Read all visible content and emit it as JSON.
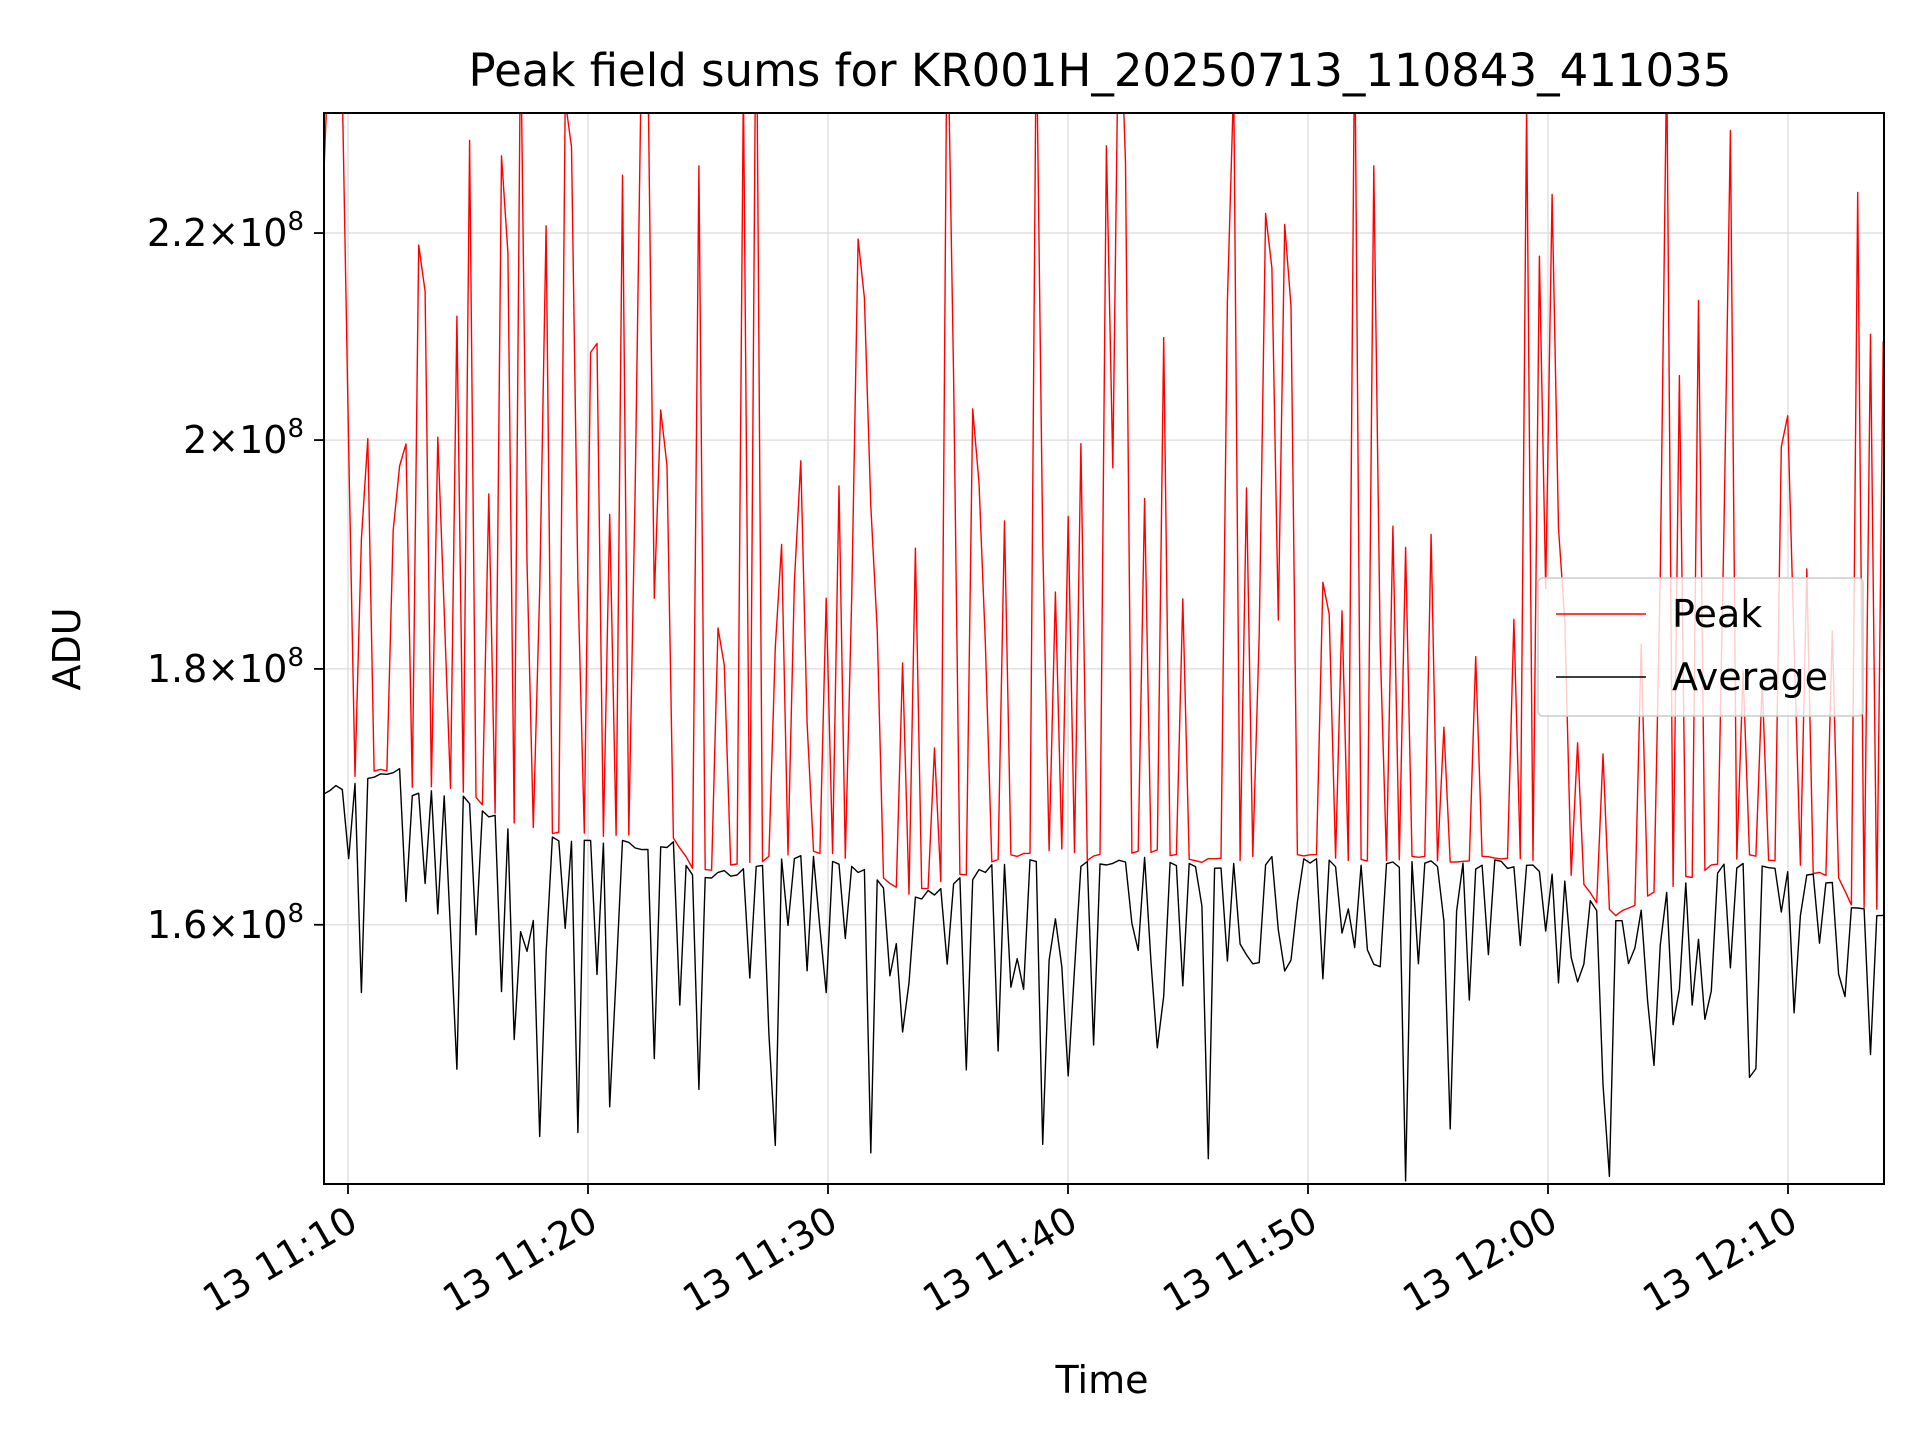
{
  "chart_data": {
    "type": "line",
    "title": "Peak field sums for KR001H_20250713_110843_411035",
    "xlabel": "Time",
    "ylabel": "ADU",
    "x_start": "2025-07-13 11:08:58",
    "x_end": "2025-07-13 12:13:58",
    "xlim": [
      "2025-07-13 11:09:00",
      "2025-07-13 12:14:00"
    ],
    "ylim": [
      142000000,
      232500000
    ],
    "yscale": "log",
    "grid": true,
    "legend_position": "center-right",
    "x_ticks": [
      {
        "label": "13 11:10"
      },
      {
        "label": "13 11:20"
      },
      {
        "label": "13 11:30"
      },
      {
        "label": "13 11:40"
      },
      {
        "label": "13 11:50"
      },
      {
        "label": "13 12:00"
      },
      {
        "label": "13 12:10"
      }
    ],
    "y_ticks": [
      {
        "value": 160000000,
        "mantissa": "1.6",
        "exp": "8"
      },
      {
        "value": 180000000,
        "mantissa": "1.8",
        "exp": "8"
      },
      {
        "value": 200000000,
        "mantissa": "2",
        "exp": "8"
      },
      {
        "value": 220000000,
        "mantissa": "2.2",
        "exp": "8"
      }
    ],
    "series": [
      {
        "name": "Peak",
        "color": "#ff0000"
      },
      {
        "name": "Average",
        "color": "#000000"
      }
    ],
    "baseline_knots": [
      [
        0,
        170.5
      ],
      [
        5,
        171
      ],
      [
        12,
        172
      ],
      [
        14,
        170.3
      ],
      [
        22,
        170
      ],
      [
        25,
        169
      ],
      [
        30,
        167.5
      ],
      [
        35,
        166.8
      ],
      [
        40,
        166.6
      ],
      [
        48,
        166.5
      ],
      [
        50,
        166.1
      ],
      [
        55,
        166.3
      ],
      [
        58,
        164.2
      ],
      [
        60,
        163.8
      ],
      [
        62,
        164
      ],
      [
        70,
        164.8
      ],
      [
        75,
        165.2
      ],
      [
        80,
        165.3
      ],
      [
        85,
        164.2
      ],
      [
        88,
        163.3
      ],
      [
        92,
        162.2
      ],
      [
        95,
        162.6
      ],
      [
        100,
        163.5
      ],
      [
        105,
        164.6
      ],
      [
        110,
        165.2
      ],
      [
        115,
        165.5
      ],
      [
        120,
        164.8
      ],
      [
        125,
        165.2
      ],
      [
        130,
        165.4
      ],
      [
        138,
        164.6
      ],
      [
        145,
        164.8
      ],
      [
        150,
        165.2
      ],
      [
        155,
        165
      ],
      [
        165,
        164.6
      ],
      [
        170,
        164.8
      ],
      [
        172,
        164.9
      ],
      [
        178,
        164.6
      ],
      [
        184,
        164.9
      ],
      [
        190,
        164.5
      ],
      [
        195,
        163.8
      ],
      [
        197,
        163.3
      ],
      [
        200,
        161.5
      ],
      [
        203,
        160.5
      ],
      [
        210,
        162.4
      ],
      [
        215,
        163.5
      ],
      [
        220,
        164.6
      ],
      [
        225,
        165
      ],
      [
        230,
        164.5
      ],
      [
        235,
        163.6
      ],
      [
        238,
        163.4
      ],
      [
        240,
        161.3
      ],
      [
        245,
        161
      ]
    ]
  }
}
